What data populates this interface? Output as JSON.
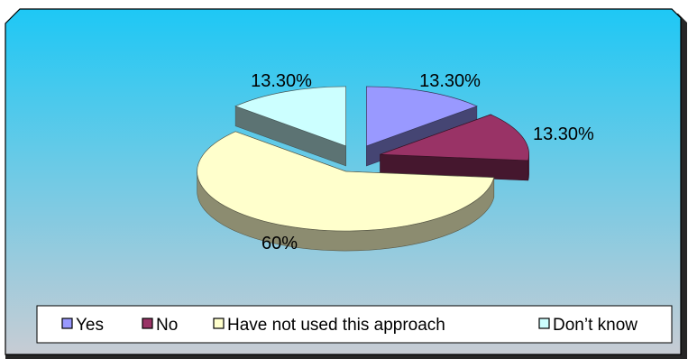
{
  "chart_data": {
    "type": "pie",
    "style": "3d-exploded",
    "categories": [
      "Yes",
      "No",
      "Have not used this approach",
      "Don’t know"
    ],
    "values": [
      13.3,
      13.3,
      60,
      13.3
    ],
    "data_labels": [
      "13.30%",
      "13.30%",
      "60%",
      "13.30%"
    ],
    "series": [
      {
        "name": "",
        "values": [
          13.3,
          13.3,
          60,
          13.3
        ]
      }
    ],
    "colors": {
      "Yes": "#9999ff",
      "No": "#993366",
      "Have not used this approach": "#ffffcc",
      "Don’t know": "#ccffff"
    },
    "legend": "bottom",
    "title": "",
    "background": {
      "top": "#1ec8f5",
      "bottom": "#c7ccd4"
    }
  },
  "legend": {
    "items": [
      {
        "label": "Yes"
      },
      {
        "label": "No"
      },
      {
        "label": "Have not used this approach"
      },
      {
        "label": "Don’t know"
      }
    ]
  }
}
